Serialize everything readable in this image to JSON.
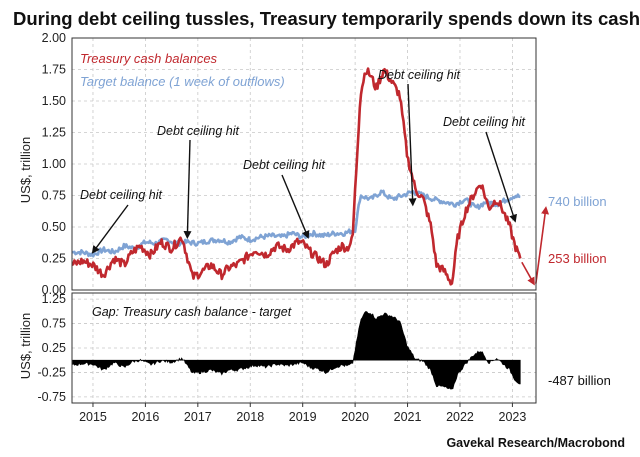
{
  "title": "During debt ceiling tussles, Treasury temporarily spends down its cash",
  "source": "Gavekal Research/Macrobond",
  "colors": {
    "cash": "#c0282e",
    "target": "#7fa3d4",
    "gap": "#000000",
    "annotation": "#111111"
  },
  "chart_data": [
    {
      "type": "line",
      "ylabel": "US$, trillion",
      "ylim": [
        0,
        2.0
      ],
      "yticks": [
        "0.00",
        "0.25",
        "0.50",
        "0.75",
        "1.00",
        "1.25",
        "1.50",
        "1.75",
        "2.00"
      ],
      "grid": true,
      "legend_position": "top-left",
      "series": [
        {
          "name": "Treasury cash balances",
          "color": "#c0282e",
          "x": [
            2014.6,
            2014.8,
            2015.0,
            2015.2,
            2015.4,
            2015.6,
            2015.75,
            2015.9,
            2016.1,
            2016.3,
            2016.5,
            2016.7,
            2016.9,
            2017.1,
            2017.25,
            2017.45,
            2017.6,
            2017.75,
            2017.9,
            2018.1,
            2018.3,
            2018.5,
            2018.7,
            2018.9,
            2019.0,
            2019.15,
            2019.3,
            2019.45,
            2019.6,
            2019.75,
            2019.85,
            2019.95,
            2020.1,
            2020.2,
            2020.3,
            2020.4,
            2020.55,
            2020.7,
            2020.85,
            2021.0,
            2021.15,
            2021.3,
            2021.45,
            2021.55,
            2021.7,
            2021.85,
            2021.95,
            2022.1,
            2022.25,
            2022.4,
            2022.55,
            2022.7,
            2022.8,
            2022.95,
            2023.05,
            2023.15
          ],
          "y": [
            0.2,
            0.23,
            0.2,
            0.12,
            0.25,
            0.2,
            0.3,
            0.35,
            0.28,
            0.38,
            0.33,
            0.42,
            0.1,
            0.15,
            0.2,
            0.12,
            0.18,
            0.2,
            0.25,
            0.32,
            0.28,
            0.35,
            0.32,
            0.38,
            0.37,
            0.3,
            0.25,
            0.2,
            0.3,
            0.35,
            0.33,
            0.4,
            1.55,
            1.75,
            1.7,
            1.6,
            1.75,
            1.65,
            1.55,
            1.05,
            0.8,
            0.72,
            0.5,
            0.2,
            0.15,
            0.05,
            0.4,
            0.62,
            0.75,
            0.85,
            0.65,
            0.72,
            0.65,
            0.5,
            0.35,
            0.25
          ]
        },
        {
          "name": "Target balance (1 week of outflows)",
          "color": "#7fa3d4",
          "x": [
            2014.6,
            2014.8,
            2015.0,
            2015.2,
            2015.4,
            2015.6,
            2015.8,
            2016.0,
            2016.2,
            2016.4,
            2016.6,
            2016.8,
            2017.0,
            2017.2,
            2017.4,
            2017.6,
            2017.8,
            2018.0,
            2018.2,
            2018.4,
            2018.6,
            2018.8,
            2019.0,
            2019.2,
            2019.4,
            2019.6,
            2019.8,
            2020.0,
            2020.1,
            2020.3,
            2020.5,
            2020.7,
            2020.9,
            2021.1,
            2021.3,
            2021.5,
            2021.7,
            2021.9,
            2022.1,
            2022.3,
            2022.5,
            2022.7,
            2022.9,
            2023.05,
            2023.15
          ],
          "y": [
            0.3,
            0.3,
            0.28,
            0.32,
            0.3,
            0.35,
            0.33,
            0.38,
            0.37,
            0.4,
            0.37,
            0.38,
            0.37,
            0.39,
            0.4,
            0.38,
            0.42,
            0.4,
            0.42,
            0.43,
            0.42,
            0.45,
            0.42,
            0.45,
            0.43,
            0.45,
            0.45,
            0.48,
            0.75,
            0.72,
            0.78,
            0.72,
            0.75,
            0.78,
            0.75,
            0.72,
            0.7,
            0.68,
            0.72,
            0.65,
            0.7,
            0.68,
            0.72,
            0.75,
            0.74
          ]
        }
      ],
      "annotations": [
        {
          "text": "Debt ceiling hit",
          "x": 2015.0,
          "y": 0.3
        },
        {
          "text": "Debt ceiling hit",
          "x": 2016.8,
          "y": 0.42
        },
        {
          "text": "Debt ceiling hit",
          "x": 2019.1,
          "y": 0.42
        },
        {
          "text": "Debt ceiling hit",
          "x": 2021.1,
          "y": 0.68
        },
        {
          "text": "Debt ceiling hit",
          "x": 2023.05,
          "y": 0.55
        }
      ],
      "end_labels": [
        {
          "text": "740 billion",
          "series": "Target balance (1 week of outflows)"
        },
        {
          "text": "253 billion",
          "series": "Treasury cash balances"
        }
      ]
    },
    {
      "type": "area",
      "title": "Gap: Treasury cash balance - target",
      "ylabel": "US$, trillion",
      "ylim": [
        -0.875,
        1.375
      ],
      "yticks": [
        "-0.75",
        "-0.25",
        "0.25",
        "0.75",
        "1.25"
      ],
      "grid": true,
      "series": [
        {
          "name": "Gap",
          "color": "#000000",
          "x": [
            2014.6,
            2014.8,
            2015.0,
            2015.2,
            2015.4,
            2015.6,
            2015.75,
            2015.9,
            2016.1,
            2016.3,
            2016.5,
            2016.7,
            2016.9,
            2017.1,
            2017.25,
            2017.45,
            2017.6,
            2017.75,
            2017.9,
            2018.1,
            2018.3,
            2018.5,
            2018.7,
            2018.9,
            2019.0,
            2019.15,
            2019.3,
            2019.45,
            2019.6,
            2019.75,
            2019.85,
            2019.95,
            2020.1,
            2020.2,
            2020.3,
            2020.4,
            2020.55,
            2020.7,
            2020.85,
            2021.0,
            2021.15,
            2021.3,
            2021.45,
            2021.55,
            2021.7,
            2021.85,
            2021.95,
            2022.1,
            2022.25,
            2022.4,
            2022.55,
            2022.7,
            2022.8,
            2022.95,
            2023.05,
            2023.15
          ],
          "y": [
            -0.1,
            -0.07,
            -0.08,
            -0.2,
            -0.05,
            -0.15,
            -0.03,
            0.0,
            -0.09,
            -0.01,
            -0.04,
            0.04,
            -0.27,
            -0.24,
            -0.2,
            -0.28,
            -0.2,
            -0.2,
            -0.16,
            -0.1,
            -0.14,
            -0.08,
            -0.11,
            -0.07,
            -0.05,
            -0.15,
            -0.18,
            -0.25,
            -0.15,
            -0.1,
            -0.12,
            -0.08,
            0.8,
            1.0,
            0.97,
            0.85,
            0.95,
            0.9,
            0.8,
            0.28,
            0.02,
            -0.02,
            -0.22,
            -0.52,
            -0.55,
            -0.62,
            -0.3,
            -0.08,
            0.1,
            0.2,
            -0.05,
            0.04,
            -0.05,
            -0.2,
            -0.4,
            -0.487
          ]
        }
      ],
      "end_labels": [
        {
          "text": "-487 billion",
          "series": "Gap"
        }
      ]
    }
  ],
  "x_axis": {
    "xlim": [
      2014.6,
      2023.45
    ],
    "ticks": [
      2015,
      2016,
      2017,
      2018,
      2019,
      2020,
      2021,
      2022,
      2023
    ],
    "tick_labels": [
      "2015",
      "2016",
      "2017",
      "2018",
      "2019",
      "2020",
      "2021",
      "2022",
      "2023"
    ]
  }
}
